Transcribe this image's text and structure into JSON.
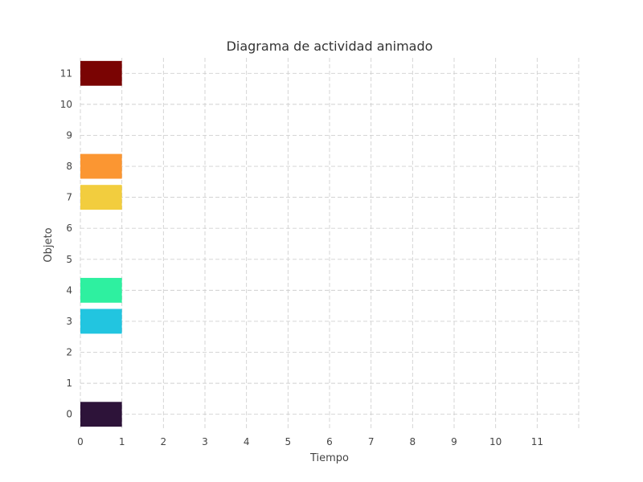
{
  "chart_data": {
    "type": "bar",
    "orientation": "horizontal",
    "title": "Diagrama de actividad animado",
    "xlabel": "Tiempo",
    "ylabel": "Objeto",
    "xlim": [
      0,
      12
    ],
    "ylim": [
      -0.5,
      11.5
    ],
    "xticks": [
      0,
      1,
      2,
      3,
      4,
      5,
      6,
      7,
      8,
      9,
      10,
      11
    ],
    "yticks": [
      0,
      1,
      2,
      3,
      4,
      5,
      6,
      7,
      8,
      9,
      10,
      11
    ],
    "grid": true,
    "bars": [
      {
        "object": 0,
        "start": 0,
        "end": 1,
        "color": "#2d1339"
      },
      {
        "object": 3,
        "start": 0,
        "end": 1,
        "color": "#22c5e0"
      },
      {
        "object": 4,
        "start": 0,
        "end": 1,
        "color": "#2ef0a0"
      },
      {
        "object": 7,
        "start": 0,
        "end": 1,
        "color": "#f2cd3e"
      },
      {
        "object": 8,
        "start": 0,
        "end": 1,
        "color": "#fb9632"
      },
      {
        "object": 11,
        "start": 0,
        "end": 1,
        "color": "#7a0403"
      }
    ]
  }
}
